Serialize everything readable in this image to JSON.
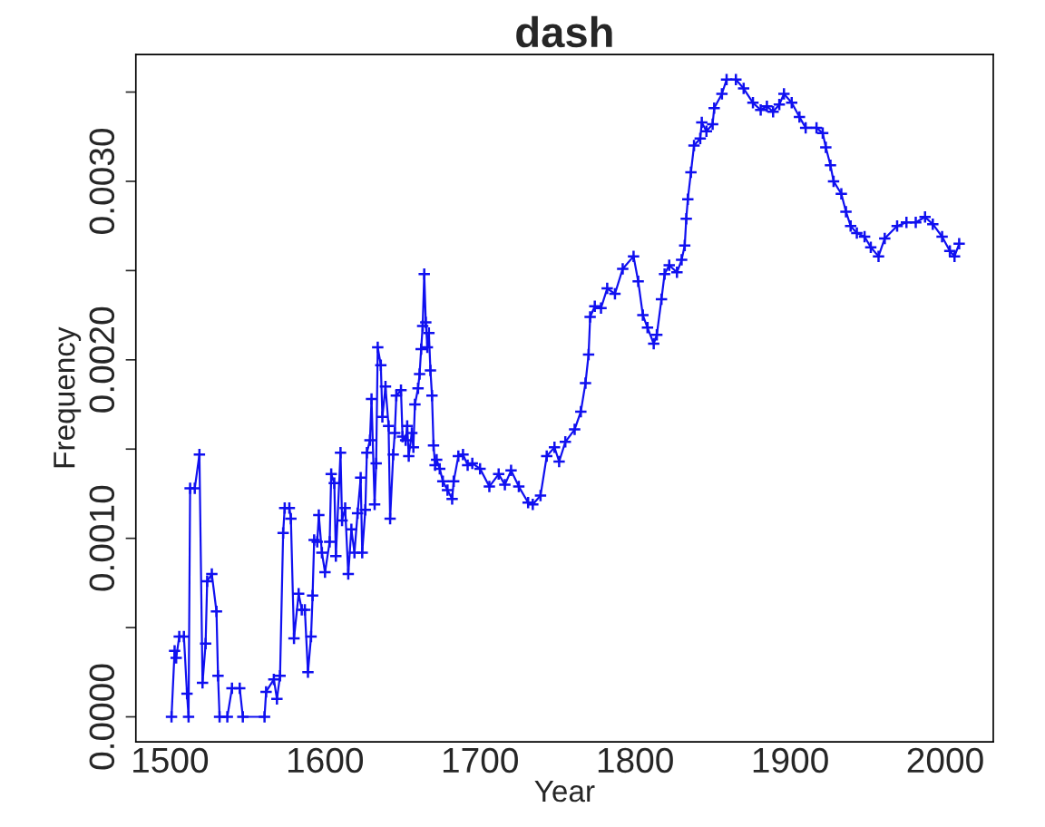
{
  "chart_data": {
    "type": "line",
    "title": "dash",
    "xlabel": "Year",
    "ylabel": "Frequency",
    "xlim": [
      1478,
      2031
    ],
    "xticks": [
      1500,
      1600,
      1700,
      1800,
      1900,
      2000
    ],
    "ylim": [
      -0.00014,
      0.00371
    ],
    "yticks": [
      {
        "value": 0.0,
        "label": "0.0000"
      },
      {
        "value": 0.0005,
        "label": null
      },
      {
        "value": 0.001,
        "label": "0.0010"
      },
      {
        "value": 0.0015,
        "label": null
      },
      {
        "value": 0.002,
        "label": "0.0020"
      },
      {
        "value": 0.0025,
        "label": null
      },
      {
        "value": 0.003,
        "label": "0.0030"
      },
      {
        "value": 0.0035,
        "label": null
      }
    ],
    "grid": false,
    "legend": false,
    "marker": "cross",
    "line_style": "solid",
    "series": [
      {
        "color": "#1010f0",
        "x": [
          1501,
          1503,
          1504,
          1506,
          1509,
          1511,
          1512,
          1513,
          1516,
          1519,
          1521,
          1523,
          1524,
          1527,
          1530,
          1531,
          1532,
          1537,
          1540,
          1545,
          1547,
          1561,
          1562,
          1567,
          1569,
          1571,
          1573,
          1574,
          1577,
          1578,
          1580,
          1583,
          1585,
          1587,
          1589,
          1591,
          1592,
          1593,
          1595,
          1596,
          1598,
          1600,
          1603,
          1604,
          1606,
          1607,
          1610,
          1611,
          1613,
          1615,
          1617,
          1619,
          1621,
          1623,
          1624,
          1626,
          1627,
          1629,
          1630,
          1632,
          1633,
          1634,
          1636,
          1637,
          1639,
          1641,
          1642,
          1644,
          1645,
          1646,
          1649,
          1650,
          1652,
          1653,
          1654,
          1656,
          1657,
          1658,
          1660,
          1661,
          1662,
          1663,
          1664,
          1665,
          1666,
          1667,
          1668,
          1669,
          1670,
          1671,
          1672,
          1674,
          1676,
          1679,
          1682,
          1683,
          1686,
          1689,
          1692,
          1695,
          1700,
          1706,
          1712,
          1716,
          1720,
          1725,
          1731,
          1734,
          1739,
          1743,
          1748,
          1751,
          1755,
          1761,
          1765,
          1768,
          1770,
          1771,
          1774,
          1778,
          1782,
          1787,
          1792,
          1799,
          1802,
          1805,
          1808,
          1812,
          1814,
          1817,
          1819,
          1822,
          1827,
          1830,
          1832,
          1833,
          1834,
          1836,
          1838,
          1842,
          1843,
          1846,
          1850,
          1851,
          1856,
          1859,
          1865,
          1870,
          1876,
          1881,
          1885,
          1889,
          1893,
          1896,
          1901,
          1906,
          1910,
          1917,
          1921,
          1923,
          1926,
          1928,
          1933,
          1936,
          1939,
          1943,
          1948,
          1952,
          1957,
          1961,
          1969,
          1975,
          1981,
          1987,
          1992,
          1998,
          2003,
          2006,
          2009
        ],
        "values": [
          0,
          0.00037,
          0.00033,
          0.00045,
          0.00045,
          0.00013,
          0,
          0.00128,
          0.00128,
          0.00147,
          0.00019,
          0.00041,
          0.00076,
          0.0008,
          0.00059,
          0.00023,
          0,
          0,
          0.00016,
          0.00016,
          0,
          0,
          0.00014,
          0.00021,
          0.0001,
          0.00023,
          0.00103,
          0.00117,
          0.00117,
          0.00111,
          0.00044,
          0.00069,
          0.0006,
          0.0006,
          0.00025,
          0.00045,
          0.00068,
          0.00099,
          0.00098,
          0.00113,
          0.00092,
          0.00081,
          0.00098,
          0.00136,
          0.00131,
          0.0009,
          0.00148,
          0.0011,
          0.00117,
          0.0008,
          0.00105,
          0.00092,
          0.00114,
          0.00134,
          0.00092,
          0.00116,
          0.00148,
          0.00155,
          0.00178,
          0.00119,
          0.00142,
          0.00207,
          0.00197,
          0.00168,
          0.00185,
          0.00163,
          0.00111,
          0.00147,
          0.00159,
          0.0018,
          0.00183,
          0.00157,
          0.00155,
          0.00163,
          0.00146,
          0.00159,
          0.00151,
          0.00175,
          0.00184,
          0.00192,
          0.00206,
          0.00219,
          0.00248,
          0.00221,
          0.00207,
          0.00215,
          0.00194,
          0.0018,
          0.00152,
          0.00141,
          0.00144,
          0.00139,
          0.00132,
          0.00127,
          0.00122,
          0.00132,
          0.00146,
          0.00147,
          0.00141,
          0.00142,
          0.00139,
          0.00129,
          0.00136,
          0.0013,
          0.00138,
          0.00129,
          0.0012,
          0.00119,
          0.00124,
          0.00146,
          0.00151,
          0.00143,
          0.00154,
          0.00161,
          0.00171,
          0.00187,
          0.00203,
          0.00224,
          0.0023,
          0.00229,
          0.0024,
          0.00237,
          0.00251,
          0.00258,
          0.00244,
          0.00225,
          0.00218,
          0.00209,
          0.00214,
          0.00234,
          0.00248,
          0.00253,
          0.00249,
          0.00256,
          0.00264,
          0.00279,
          0.0029,
          0.00305,
          0.0032,
          0.00324,
          0.00333,
          0.00328,
          0.00332,
          0.00341,
          0.00349,
          0.00357,
          0.00357,
          0.00352,
          0.00344,
          0.0034,
          0.00342,
          0.00339,
          0.00343,
          0.00349,
          0.00344,
          0.00336,
          0.0033,
          0.0033,
          0.00327,
          0.00319,
          0.00309,
          0.003,
          0.00293,
          0.00283,
          0.00275,
          0.00271,
          0.00269,
          0.00263,
          0.00258,
          0.00268,
          0.00275,
          0.00277,
          0.00277,
          0.0028,
          0.00276,
          0.00269,
          0.00261,
          0.00258,
          0.00265
        ]
      }
    ]
  }
}
